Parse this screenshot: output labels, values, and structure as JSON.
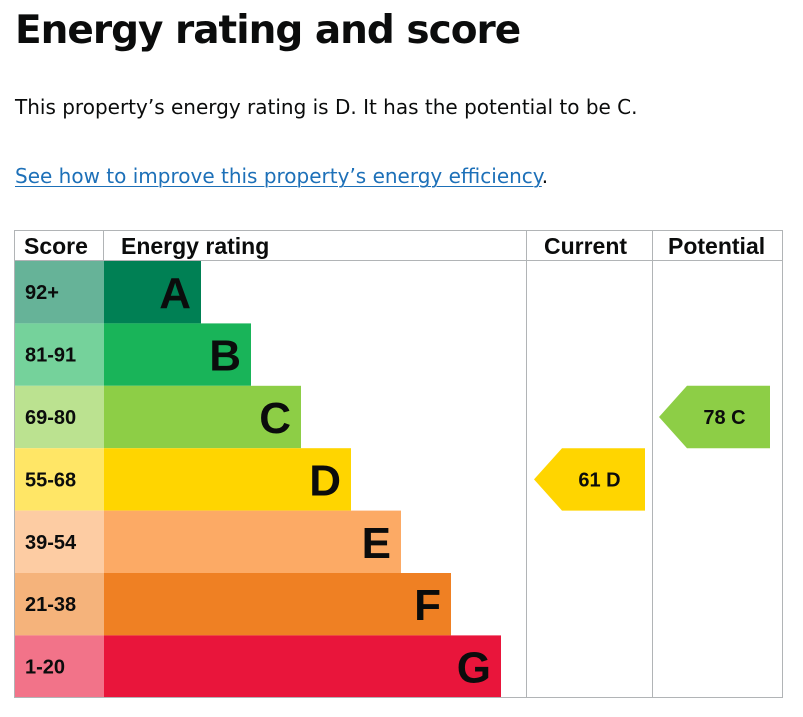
{
  "heading": "Energy rating and score",
  "summary": "This property’s energy rating is D. It has the potential to be C.",
  "improve_link": {
    "text": "See how to improve this property’s energy efficiency",
    "suffix": "."
  },
  "table_headers": {
    "score": "Score",
    "rating": "Energy rating",
    "current": "Current",
    "potential": "Potential"
  },
  "bands": [
    {
      "letter": "A",
      "range": "92+",
      "color": "#008054",
      "score_color": "#66b398"
    },
    {
      "letter": "B",
      "range": "81-91",
      "color": "#19b459",
      "score_color": "#75d29b"
    },
    {
      "letter": "C",
      "range": "69-80",
      "color": "#8dce46",
      "score_color": "#bbe290"
    },
    {
      "letter": "D",
      "range": "55-68",
      "color": "#ffd500",
      "score_color": "#ffe666"
    },
    {
      "letter": "E",
      "range": "39-54",
      "color": "#fcaa65",
      "score_color": "#fdcca3"
    },
    {
      "letter": "F",
      "range": "21-38",
      "color": "#ef8023",
      "score_color": "#f5b37b"
    },
    {
      "letter": "G",
      "range": "1-20",
      "color": "#e9153b",
      "score_color": "#f27389"
    }
  ],
  "current": {
    "score": 61,
    "band": "D",
    "label": "61  D"
  },
  "potential": {
    "score": 78,
    "band": "C",
    "label": "78  C"
  }
}
